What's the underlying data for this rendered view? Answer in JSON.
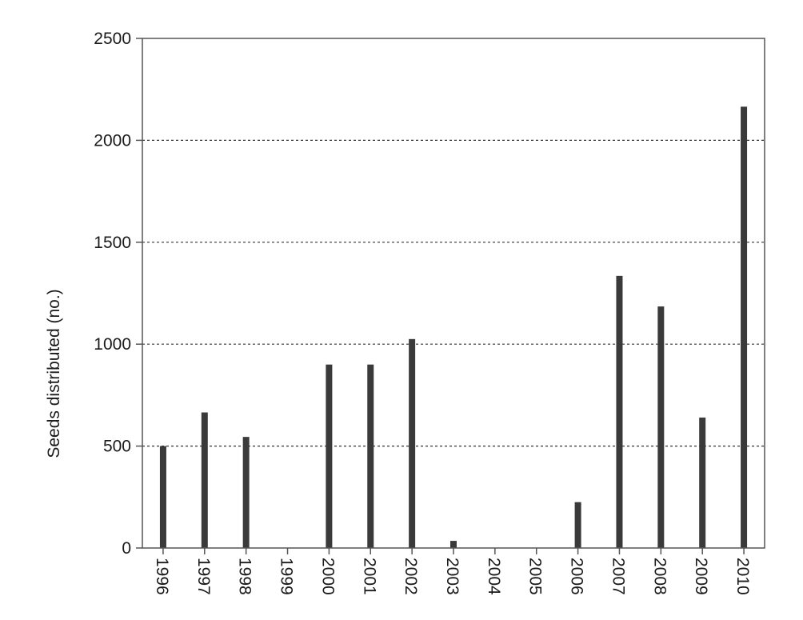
{
  "chart_data": {
    "type": "bar",
    "title": "",
    "xlabel": "",
    "ylabel": "Seeds distributed (no.)",
    "categories": [
      "1996",
      "1997",
      "1998",
      "1999",
      "2000",
      "2001",
      "2002",
      "2003",
      "2004",
      "2005",
      "2006",
      "2007",
      "2008",
      "2009",
      "2010"
    ],
    "values": [
      500,
      665,
      545,
      0,
      900,
      900,
      1025,
      35,
      0,
      0,
      225,
      1335,
      1185,
      640,
      2165
    ],
    "ylim": [
      0,
      2500
    ],
    "yticks": [
      0,
      500,
      1000,
      1500,
      2000,
      2500
    ],
    "grid": "horizontal dotted lines at y ticks 500-2000",
    "legend": "none",
    "colors": {
      "bar": "#3a3a3a",
      "axis": "#555555",
      "grid": "#333333",
      "text": "#1a1a1a"
    }
  }
}
